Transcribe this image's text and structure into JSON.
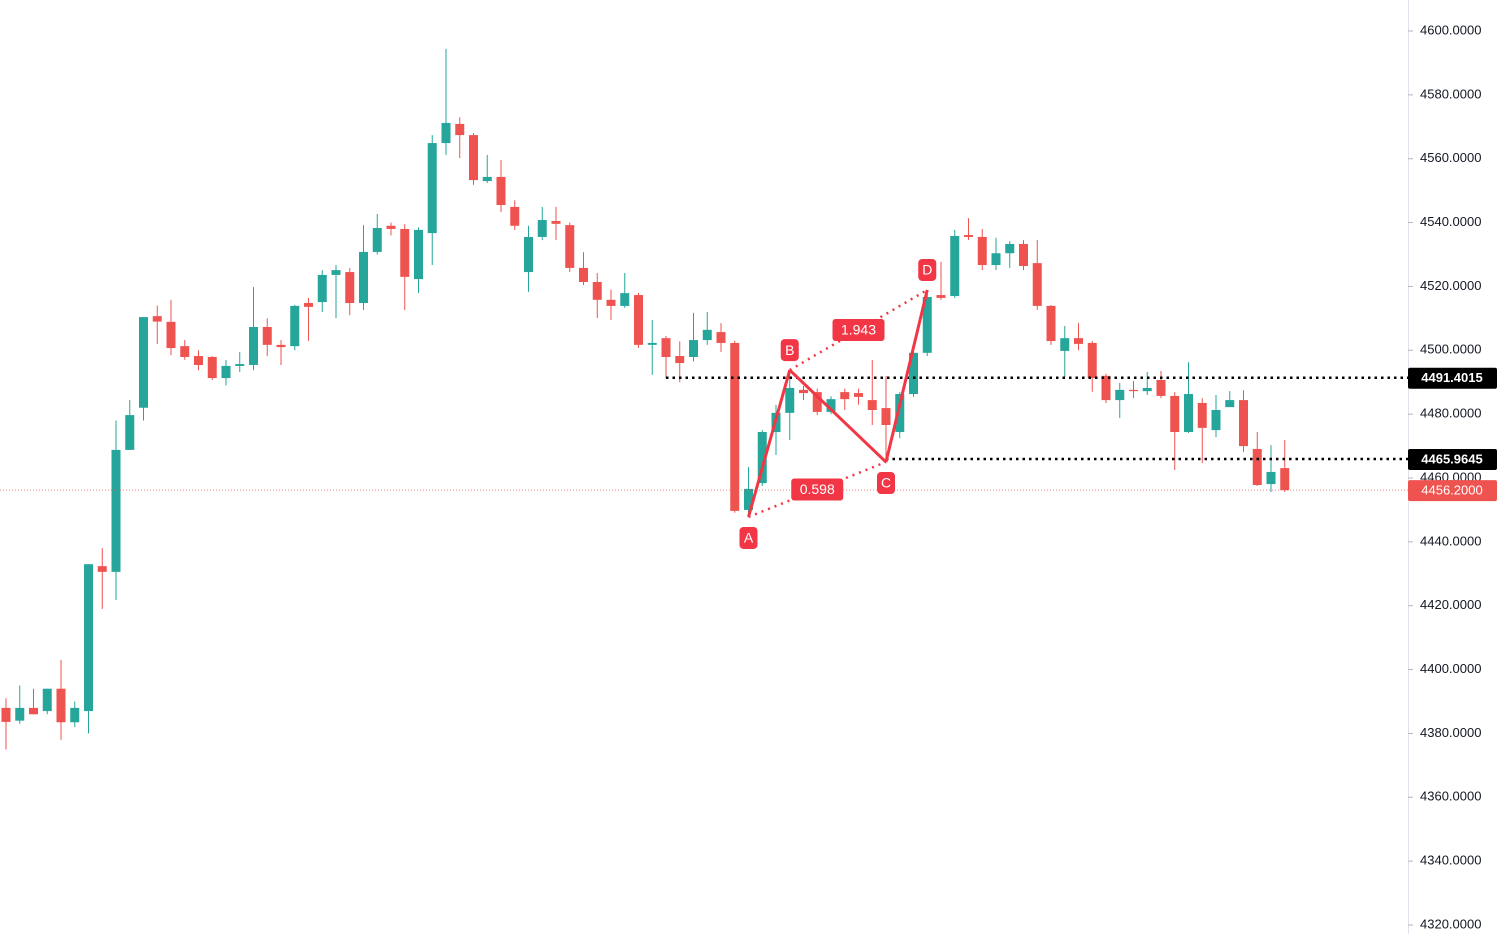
{
  "chart_data": {
    "type": "candlestick",
    "up_color": "#26a69a",
    "down_color": "#ef5350",
    "ylim": [
      4320,
      4600
    ],
    "yticks": [
      {
        "value": 4320,
        "label": "4320.0000"
      },
      {
        "value": 4340,
        "label": "4340.0000"
      },
      {
        "value": 4360,
        "label": "4360.0000"
      },
      {
        "value": 4380,
        "label": "4380.0000"
      },
      {
        "value": 4400,
        "label": "4400.0000"
      },
      {
        "value": 4420,
        "label": "4420.0000"
      },
      {
        "value": 4440,
        "label": "4440.0000"
      },
      {
        "value": 4460,
        "label": "4460.0000"
      },
      {
        "value": 4480,
        "label": "4480.0000"
      },
      {
        "value": 4500,
        "label": "4500.0000"
      },
      {
        "value": 4520,
        "label": "4520.0000"
      },
      {
        "value": 4540,
        "label": "4540.0000"
      },
      {
        "value": 4560,
        "label": "4560.0000"
      },
      {
        "value": 4580,
        "label": "4580.0000"
      },
      {
        "value": 4600,
        "label": "4600.0000"
      }
    ],
    "open": [
      4388,
      4384,
      4388,
      4387,
      4394,
      4383.5,
      4387,
      4432.4,
      4430.6,
      4468.8,
      4482,
      4510.7,
      4508.9,
      4501.3,
      4498.2,
      4497.9,
      4491.3,
      4495.1,
      4495.4,
      4507.3,
      4501.7,
      4501.3,
      4514.8,
      4515.1,
      4523.6,
      4524.5,
      4514.8,
      4530.8,
      4539,
      4538,
      4522.3,
      4536.7,
      4564.9,
      4570.9,
      4567.4,
      4553,
      4554.3,
      4544.9,
      4524.5,
      4535.5,
      4540.5,
      4539.2,
      4525.8,
      4521.4,
      4515.8,
      4513.9,
      4517.3,
      4501.7,
      4503.8,
      4498.2,
      4497.9,
      4503.2,
      4505.7,
      4502.3,
      4450,
      4458.4,
      4474.4,
      4480.4,
      4487.6,
      4486.9,
      4480.7,
      4486.9,
      4486.6,
      4484.4,
      4481.9,
      4474.4,
      4486.3,
      4499.2,
      4517.3,
      4517,
      4536.1,
      4535.5,
      4526.7,
      4530.4,
      4533.3,
      4527.3,
      4513.9,
      4499.8,
      4503.8,
      4502.3,
      4492,
      4484.4,
      4487.6,
      4487.2,
      4490.7,
      4485.7,
      4474.4,
      4483.5,
      4475,
      4482.2,
      4484.4,
      4469.1,
      4458.1,
      4463.1
    ],
    "high": [
      4391,
      4395,
      4394,
      4394,
      4403,
      4390,
      4433,
      4438,
      4478,
      4484.4,
      4510.4,
      4514,
      4515.8,
      4503.2,
      4500,
      4498.2,
      4497,
      4499.5,
      4519.8,
      4510,
      4503.2,
      4514.2,
      4516.4,
      4525.1,
      4526.7,
      4525.8,
      4539.2,
      4542.7,
      4540,
      4539.5,
      4538.5,
      4567.4,
      4594.4,
      4573,
      4568,
      4561.2,
      4559.6,
      4547,
      4539,
      4544.9,
      4544.9,
      4540,
      4530.7,
      4524.2,
      4519,
      4524.2,
      4518,
      4509.5,
      4504.5,
      4502.8,
      4511.7,
      4512,
      4508.5,
      4503,
      4463.4,
      4475,
      4482.9,
      4493.8,
      4488.8,
      4488,
      4485.6,
      4488,
      4488,
      4497,
      4492,
      4486.9,
      4499.5,
      4518.9,
      4527.7,
      4537.7,
      4541.4,
      4538,
      4535.2,
      4534.2,
      4534.5,
      4534.5,
      4514.2,
      4507.6,
      4508.5,
      4502.9,
      4492.6,
      4489.8,
      4490.4,
      4493.2,
      4493.5,
      4486.9,
      4496.3,
      4485,
      4486,
      4487.2,
      4487.5,
      4474.4,
      4470.3,
      4471.9
    ],
    "low": [
      4375,
      4383,
      4386,
      4386,
      4378,
      4382,
      4380,
      4419,
      4421.8,
      4468.8,
      4478,
      4502,
      4498.5,
      4497,
      4493.8,
      4490.7,
      4489,
      4493.2,
      4493.8,
      4498.2,
      4495.4,
      4500,
      4503,
      4512,
      4510.1,
      4511,
      4512.6,
      4530,
      4536,
      4512.6,
      4518,
      4526.7,
      4561.2,
      4560.2,
      4551.8,
      4552.4,
      4543.3,
      4537.7,
      4518.3,
      4534.5,
      4534.5,
      4524.5,
      4520.4,
      4510.1,
      4509.5,
      4513.3,
      4500.7,
      4492.3,
      4491.3,
      4490,
      4496.5,
      4501.7,
      4499.5,
      4449.1,
      4447.8,
      4457.5,
      4467.2,
      4471.9,
      4484.4,
      4479.7,
      4480,
      4481.3,
      4483,
      4476.6,
      4465,
      4472.5,
      4485.4,
      4498.2,
      4515.8,
      4516.4,
      4534.5,
      4525.1,
      4525.1,
      4525.8,
      4525.1,
      4512.6,
      4501.7,
      4491.6,
      4500,
      4487,
      4483.5,
      4478.8,
      4485,
      4486,
      4485,
      4462.5,
      4474.1,
      4464.7,
      4472.8,
      4483.5,
      4468.1,
      4457.5,
      4455.6,
      4455.6
    ],
    "close": [
      4383.6,
      4388,
      4386,
      4394,
      4383.5,
      4388,
      4433,
      4430.6,
      4468.8,
      4479.7,
      4510.4,
      4509,
      4500.7,
      4497.9,
      4495.4,
      4491.3,
      4495.1,
      4495.7,
      4507.3,
      4501.7,
      4501,
      4513.9,
      4513.6,
      4523.6,
      4525.1,
      4514.8,
      4530.8,
      4538.3,
      4538,
      4523,
      4537.7,
      4564.9,
      4571.2,
      4567.4,
      4553.3,
      4554.3,
      4545.5,
      4539,
      4535.5,
      4540.8,
      4539.6,
      4525.8,
      4521.4,
      4515.8,
      4513.9,
      4517.9,
      4501.7,
      4502.3,
      4497.9,
      4496,
      4503.2,
      4506.4,
      4502.3,
      4449.7,
      4456.6,
      4474.4,
      4480.4,
      4488.2,
      4486.6,
      4480.7,
      4484.7,
      4484.7,
      4485.4,
      4481.3,
      4476.6,
      4486.3,
      4499.2,
      4516.7,
      4516.4,
      4535.8,
      4535.5,
      4526.7,
      4530.4,
      4533.3,
      4526.4,
      4513.9,
      4502.9,
      4503.8,
      4502,
      4491.3,
      4484.4,
      4487.6,
      4487.2,
      4488.2,
      4485.7,
      4474.4,
      4486.3,
      4475.7,
      4481.3,
      4484.4,
      4470,
      4457.8,
      4461.9,
      4456.2
    ],
    "pattern": {
      "color": "#f23645",
      "points": [
        {
          "label": "A",
          "candle": 54,
          "price": 4447.8
        },
        {
          "label": "B",
          "candle": 57,
          "price": 4493.8
        },
        {
          "label": "C",
          "candle": 64,
          "price": 4465
        },
        {
          "label": "D",
          "candle": 67,
          "price": 4518.9
        }
      ],
      "bd_ratio": 1.943,
      "ac_ratio": 0.598
    },
    "levels": [
      {
        "value": 4491.4015,
        "start": 48
      },
      {
        "value": 4465.9645,
        "start": 64
      }
    ],
    "last_price": {
      "value": 4456.2,
      "label": "4456.2000"
    }
  }
}
